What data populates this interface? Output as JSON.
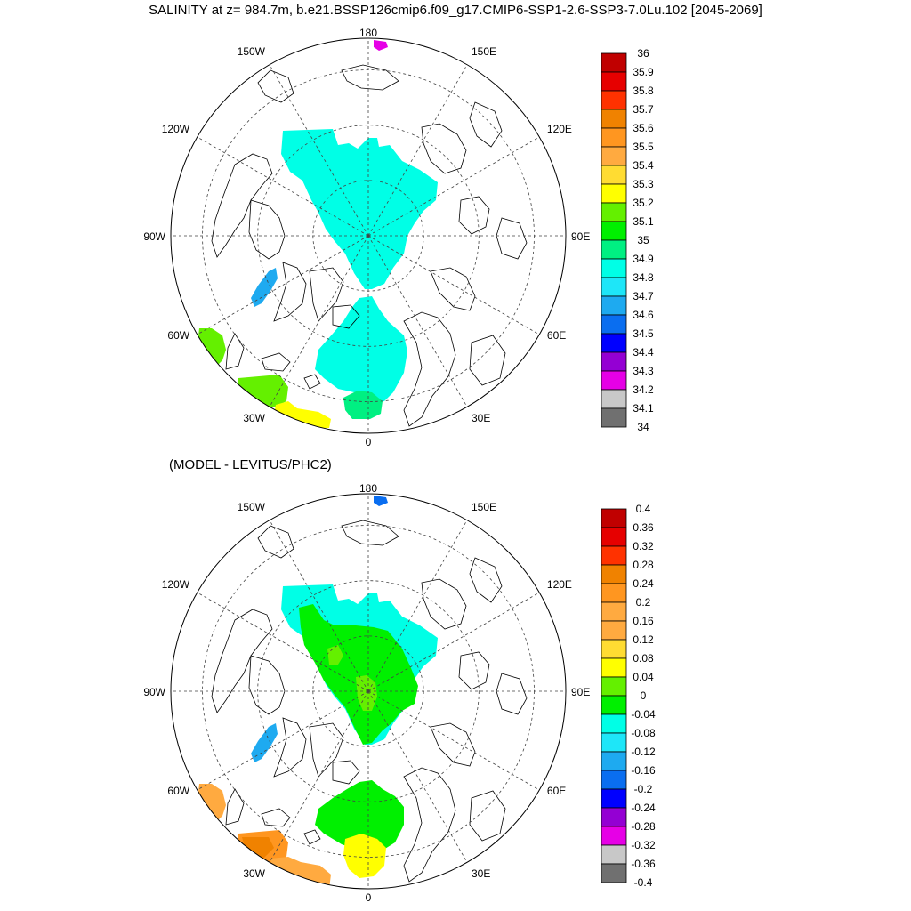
{
  "title": "SALINITY at z= 984.7m, b.e21.BSSP126cmip6.f09_g17.CMIP6-SSP1-2.6-SSP3-7.0Lu.102 [2045-2069]",
  "subtitle": "(MODEL - LEVITUS/PHC2)",
  "lon_labels": [
    "180",
    "150E",
    "120E",
    "90E",
    "60E",
    "30E",
    "0",
    "30W",
    "60W",
    "90W",
    "120W",
    "150W"
  ],
  "colors": {
    "gray_dark": "#707070",
    "gray_light": "#c8c8c8",
    "magenta": "#e600e6",
    "purple": "#9400d3",
    "blue": "#0000ff",
    "blue2": "#0a6ef0",
    "blue3": "#1eaaf0",
    "cyan": "#1ee6f8",
    "aqua": "#00ffe6",
    "teal_green": "#00f082",
    "green": "#00f000",
    "lime": "#64f000",
    "yellow": "#ffff00",
    "yellow2": "#ffdc32",
    "orange_light": "#ffaa40",
    "orange": "#ff9620",
    "orange_dark": "#f08200",
    "red_orange": "#ff3200",
    "red": "#e60000",
    "dark_red": "#c00000"
  },
  "top_colorbar": {
    "labels": [
      "36",
      "35.9",
      "35.8",
      "35.7",
      "35.6",
      "35.5",
      "35.4",
      "35.3",
      "35.2",
      "35.1",
      "35",
      "34.9",
      "34.8",
      "34.7",
      "34.6",
      "34.5",
      "34.4",
      "34.3",
      "34.2",
      "34.1",
      "34"
    ],
    "colors": [
      "#c00000",
      "#e60000",
      "#ff3200",
      "#f08200",
      "#ff9620",
      "#ffaa40",
      "#ffdc32",
      "#ffff00",
      "#64f000",
      "#00f000",
      "#00f082",
      "#00ffe6",
      "#1ee6f8",
      "#1eaaf0",
      "#0a6ef0",
      "#0000ff",
      "#9400d3",
      "#e600e6",
      "#c8c8c8",
      "#707070"
    ]
  },
  "bottom_colorbar": {
    "labels": [
      "0.4",
      "0.36",
      "0.32",
      "0.28",
      "0.24",
      "0.2",
      "0.16",
      "0.12",
      "0.08",
      "0.04",
      "0",
      "-0.04",
      "-0.08",
      "-0.12",
      "-0.16",
      "-0.2",
      "-0.24",
      "-0.28",
      "-0.32",
      "-0.36",
      "-0.4"
    ],
    "colors": [
      "#c00000",
      "#e60000",
      "#ff3200",
      "#f08200",
      "#ff9620",
      "#ffaa40",
      "#ffaa40",
      "#ffdc32",
      "#ffff00",
      "#64f000",
      "#00f000",
      "#00ffe6",
      "#1ee6f8",
      "#1eaaf0",
      "#0a6ef0",
      "#0000ff",
      "#9400d3",
      "#e600e6",
      "#c8c8c8",
      "#707070"
    ]
  },
  "top_map": {
    "regions": [
      {
        "name": "arctic-basin",
        "color": "#00ffe6"
      },
      {
        "name": "nordic-seas",
        "color": "#00ffe6"
      },
      {
        "name": "baffin-bay",
        "color": "#1eaaf0"
      },
      {
        "name": "labrador-sea",
        "color": "#64f000"
      },
      {
        "name": "irminger-sea",
        "color": "#64f000"
      },
      {
        "name": "iceland-basin",
        "color": "#ffff00"
      },
      {
        "name": "norwegian-coast",
        "color": "#00f082"
      },
      {
        "name": "bering-patch",
        "color": "#e600e6"
      }
    ]
  },
  "bottom_map": {
    "regions": [
      {
        "name": "arctic-basin",
        "color": "#00ffe6"
      },
      {
        "name": "arctic-basin-core",
        "color": "#00f000"
      },
      {
        "name": "arctic-center-patch",
        "color": "#64f000"
      },
      {
        "name": "arctic-small-patch",
        "color": "#64f000"
      },
      {
        "name": "nordic-seas",
        "color": "#00f000"
      },
      {
        "name": "baffin-bay",
        "color": "#1eaaf0"
      },
      {
        "name": "labrador-sea",
        "color": "#ffaa40"
      },
      {
        "name": "irminger-sea",
        "color": "#ff9620"
      },
      {
        "name": "irminger-core",
        "color": "#f08200"
      },
      {
        "name": "iceland-basin",
        "color": "#ffaa40"
      },
      {
        "name": "norwegian-coast",
        "color": "#ffff00"
      },
      {
        "name": "bering-patch",
        "color": "#0a6ef0"
      }
    ]
  }
}
